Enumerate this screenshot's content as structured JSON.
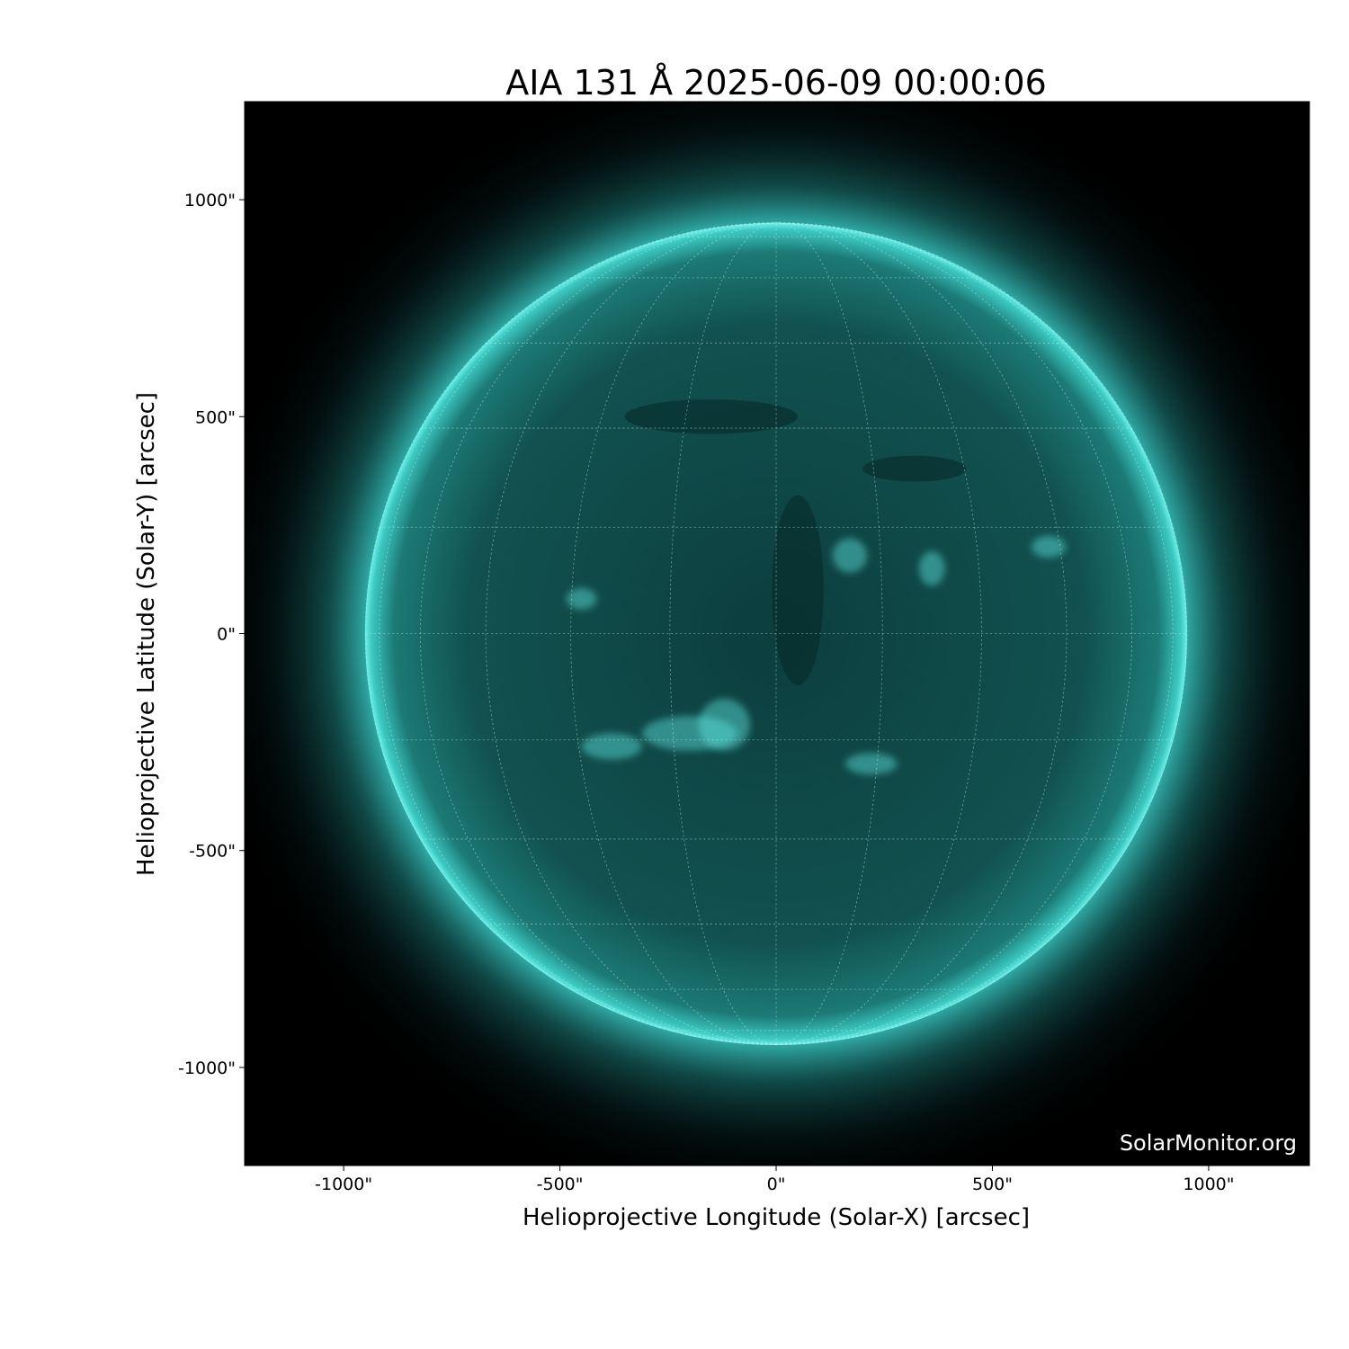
{
  "chart_data": {
    "type": "image",
    "title": "AIA 131 Å 2025-06-09 00:00:06",
    "xlabel": "Helioprojective Longitude (Solar-X) [arcsec]",
    "ylabel": "Helioprojective Latitude (Solar-Y) [arcsec]",
    "xlim": [
      -1229,
      1233
    ],
    "ylim": [
      -1226,
      1226
    ],
    "xticks": [
      {
        "value": -1000,
        "label": "-1000\""
      },
      {
        "value": -500,
        "label": "-500\""
      },
      {
        "value": 0,
        "label": "0\""
      },
      {
        "value": 500,
        "label": "500\""
      },
      {
        "value": 1000,
        "label": "1000\""
      }
    ],
    "yticks": [
      {
        "value": 1000,
        "label": "1000\""
      },
      {
        "value": 500,
        "label": "500\""
      },
      {
        "value": 0,
        "label": "0\""
      },
      {
        "value": -500,
        "label": "-500\""
      },
      {
        "value": -1000,
        "label": "-1000\""
      }
    ],
    "solar_radius_arcsec": 950,
    "grid": {
      "type": "heliographic",
      "spacing_deg": 15
    },
    "colormap": "sdoaia131",
    "colors": {
      "disk": "#0e4a4a",
      "limb": "#4fe6e0",
      "background": "#000000",
      "grid": "#cfeeee"
    },
    "watermark": "SolarMonitor.org"
  }
}
